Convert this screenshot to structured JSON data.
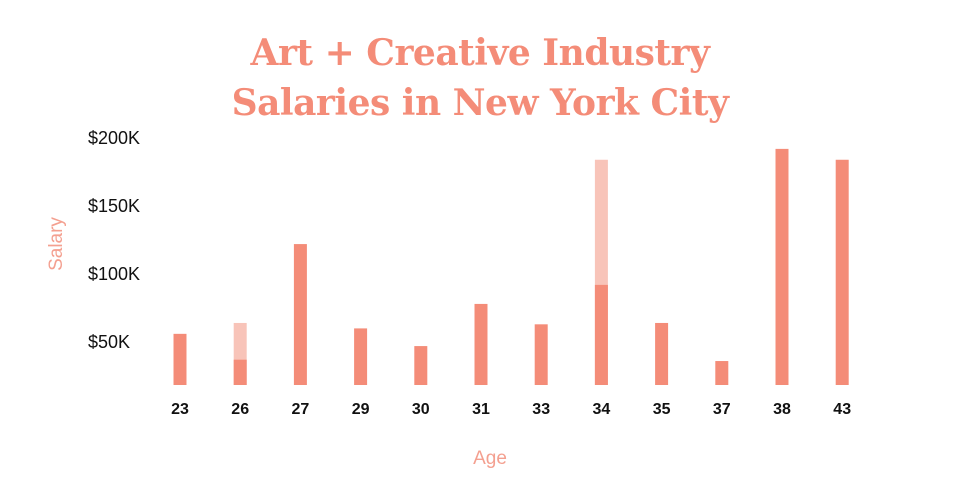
{
  "title_line1": "Art + Creative Industry",
  "title_line2": "Salaries in New York City",
  "colors": {
    "primary": "#f48c78",
    "light": "#f8c4b9",
    "text": "#111111",
    "axis_label": "#f4a090"
  },
  "chart_data": {
    "type": "bar",
    "title": "Art + Creative Industry Salaries in New York City",
    "xlabel": "Age",
    "ylabel": "Salary",
    "ylim": [
      15000,
      200000
    ],
    "ytick_values": [
      50000,
      100000,
      150000,
      200000
    ],
    "ytick_labels": [
      "$50K",
      "$100K",
      "$150K",
      "$200K"
    ],
    "grid": false,
    "categories": [
      "23",
      "26",
      "27",
      "29",
      "30",
      "31",
      "33",
      "34",
      "35",
      "37",
      "38",
      "43"
    ],
    "series": [
      {
        "color": "#f48c78",
        "values": [
          56000,
          37000,
          122000,
          60000,
          47000,
          78000,
          63000,
          92000,
          64000,
          36000,
          192000,
          184000
        ]
      },
      {
        "color": "#f8c4b9",
        "values": [
          null,
          64000,
          null,
          null,
          null,
          null,
          null,
          184000,
          null,
          null,
          null,
          null
        ]
      }
    ]
  }
}
